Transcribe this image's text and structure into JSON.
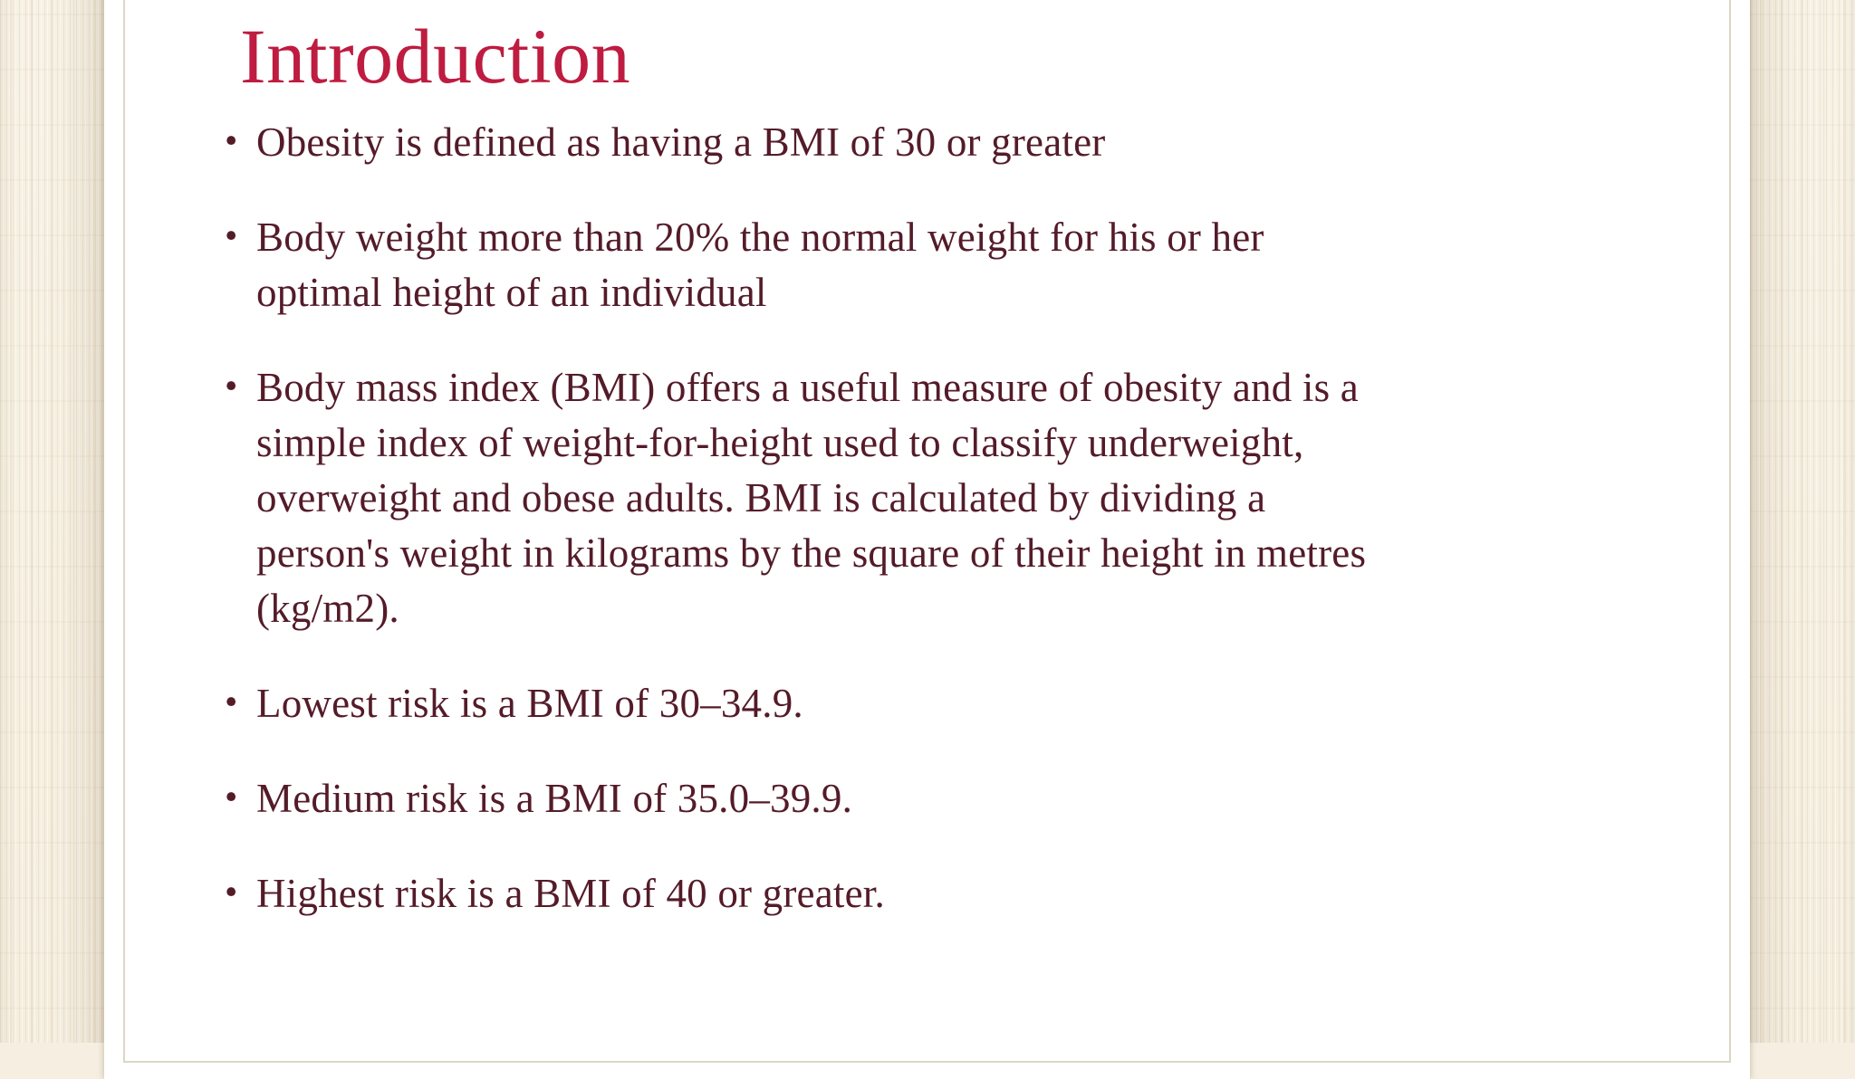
{
  "slide": {
    "title": "Introduction",
    "bullet_glyph": "•",
    "bullets": [
      "Obesity is defined as having a BMI of 30 or greater",
      "Body weight more than 20% the normal weight for his or her\noptimal height of an individual",
      "Body mass index (BMI) offers a useful measure of obesity and is a\nsimple index of weight-for-height used to classify underweight,\noverweight and obese adults. BMI is calculated by dividing a\nperson's weight in kilograms by the square of their height in metres\n(kg/m2).",
      "Lowest risk is a BMI of 30–34.9.",
      "Medium risk is a BMI of 35.0–39.9.",
      "Highest risk is a BMI of 40 or greater."
    ]
  },
  "colors": {
    "title": "#be1c40",
    "body_text": "#541b29",
    "background_beige": "#f6efe1",
    "card_white": "#ffffff",
    "border_line": "#dcd6c7"
  }
}
